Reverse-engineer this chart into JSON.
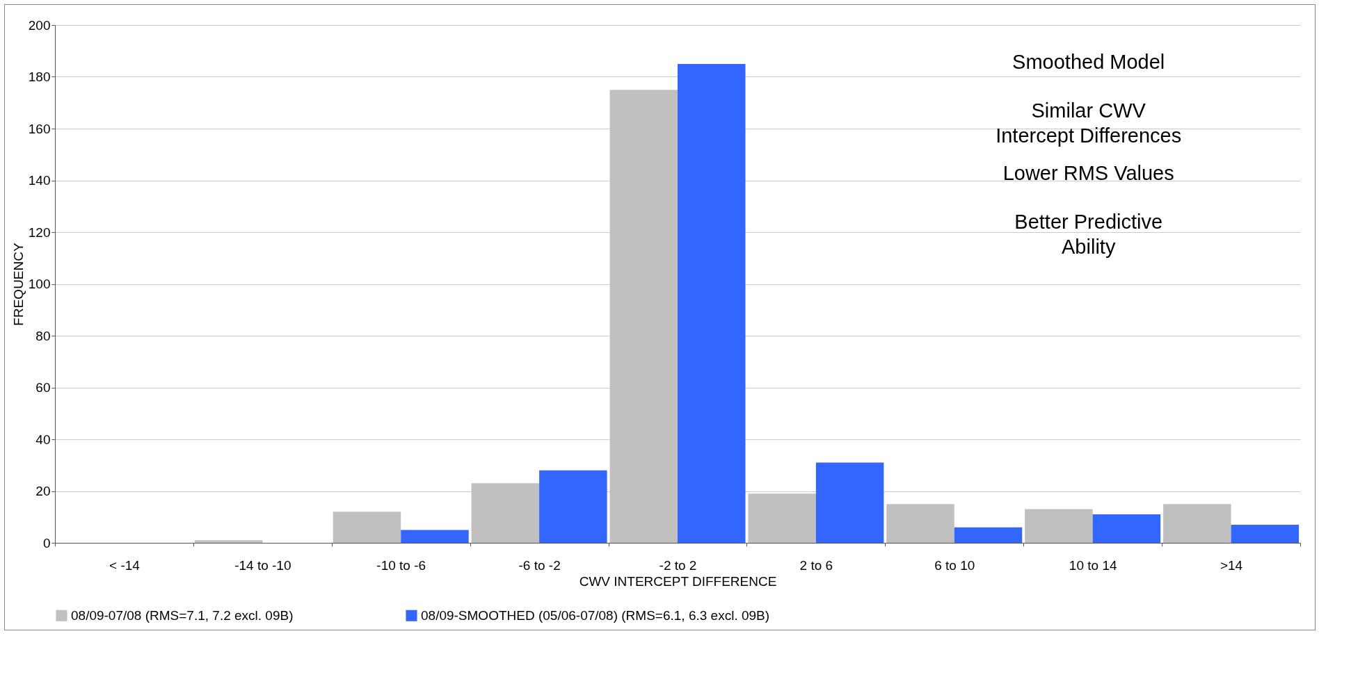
{
  "chart_data": {
    "type": "bar",
    "xlabel": "CWV INTERCEPT DIFFERENCE",
    "ylabel": "FREQUENCY",
    "categories": [
      "< -14",
      "-14 to -10",
      "-10 to -6",
      "-6 to -2",
      "-2 to 2",
      "2 to 6",
      "6 to 10",
      "10 to 14",
      ">14"
    ],
    "series": [
      {
        "name": "08/09-07/08 (RMS=7.1, 7.2 excl. 09B)",
        "color": "#c0c0c0",
        "values": [
          0,
          1,
          12,
          23,
          175,
          19,
          15,
          13,
          15
        ]
      },
      {
        "name": "08/09-SMOOTHED (05/06-07/08) (RMS=6.1, 6.3  excl. 09B)",
        "color": "#3366ff",
        "values": [
          0,
          0,
          5,
          28,
          185,
          31,
          6,
          11,
          7
        ]
      }
    ],
    "ylim": [
      0,
      200
    ],
    "yticks": [
      0,
      20,
      40,
      60,
      80,
      100,
      120,
      140,
      160,
      180,
      200
    ],
    "grid": "y",
    "legend": "bottom",
    "annotations": [
      "Smoothed Model",
      "Similar CWV\nIntercept Differences",
      "Lower RMS Values",
      "Better Predictive\nAbility"
    ]
  }
}
